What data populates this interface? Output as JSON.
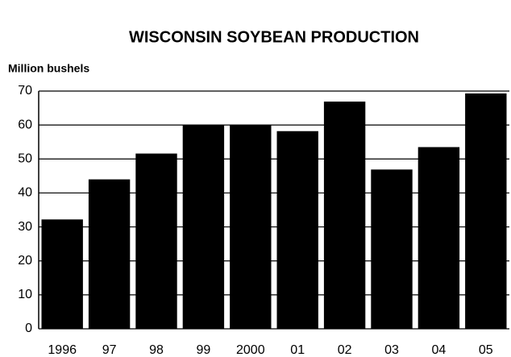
{
  "chart_data": {
    "type": "bar",
    "title": "WISCONSIN SOYBEAN PRODUCTION",
    "y_label": "Million bushels",
    "categories": [
      "1996",
      "97",
      "98",
      "99",
      "2000",
      "01",
      "02",
      "03",
      "04",
      "05"
    ],
    "values": [
      32.2,
      44,
      51.6,
      60,
      60,
      58.2,
      66.9,
      46.9,
      53.5,
      69.3
    ],
    "color": "#000000",
    "ylim": [
      0,
      70
    ],
    "yticks": [
      0,
      10,
      20,
      30,
      40,
      50,
      60,
      70
    ],
    "grid": true
  }
}
